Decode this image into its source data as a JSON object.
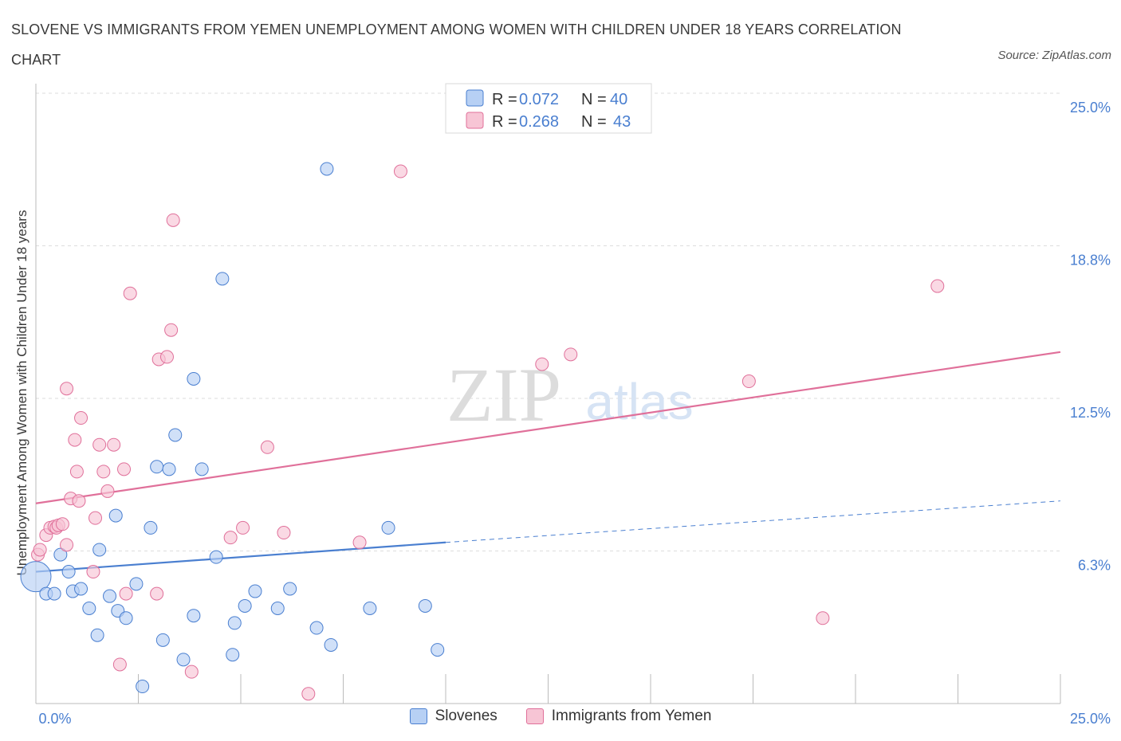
{
  "title": "SLOVENE VS IMMIGRANTS FROM YEMEN UNEMPLOYMENT AMONG WOMEN WITH CHILDREN UNDER 18 YEARS CORRELATION CHART",
  "source": "Source: ZipAtlas.com",
  "watermark": {
    "zip": "ZIP",
    "atlas": "atlas"
  },
  "chart_data": {
    "type": "scatter",
    "xlabel": "",
    "ylabel": "Unemployment Among Women with Children Under 18 years",
    "xlim": [
      0,
      25
    ],
    "ylim": [
      0,
      25
    ],
    "x_tick_labels": [
      "0.0%",
      "25.0%"
    ],
    "y_ticks": [
      25.0,
      18.75,
      12.5,
      6.25
    ],
    "y_tick_labels": [
      "25.0%",
      "18.8%",
      "12.5%",
      "6.3%"
    ],
    "legend": [
      {
        "r_label": "R =",
        "r_value": "0.072",
        "n_label": "N =",
        "n_value": "40"
      },
      {
        "r_label": "R =",
        "r_value": "0.268",
        "n_label": "N =",
        "n_value": "43"
      }
    ],
    "series": [
      {
        "name": "Slovenes",
        "color": "#4a7fd0",
        "fill": "#b7d0f4",
        "trend": {
          "x0": 0,
          "y0": 5.4,
          "x1": 10,
          "y1": 6.6,
          "dash_to_x": 25,
          "dash_to_y": 8.3
        },
        "points": [
          [
            0.0,
            5.2
          ],
          [
            0.25,
            4.5
          ],
          [
            0.45,
            4.5
          ],
          [
            0.6,
            6.1
          ],
          [
            0.8,
            5.4
          ],
          [
            0.9,
            4.6
          ],
          [
            1.1,
            4.7
          ],
          [
            1.3,
            3.9
          ],
          [
            1.5,
            2.8
          ],
          [
            1.55,
            6.3
          ],
          [
            1.8,
            4.4
          ],
          [
            1.95,
            7.7
          ],
          [
            2.0,
            3.8
          ],
          [
            2.2,
            3.5
          ],
          [
            2.45,
            4.9
          ],
          [
            2.6,
            0.7
          ],
          [
            2.8,
            7.2
          ],
          [
            2.95,
            9.7
          ],
          [
            3.1,
            2.6
          ],
          [
            3.25,
            9.6
          ],
          [
            3.4,
            11.0
          ],
          [
            3.6,
            1.8
          ],
          [
            3.85,
            13.3
          ],
          [
            3.85,
            3.6
          ],
          [
            4.05,
            9.6
          ],
          [
            4.4,
            6.0
          ],
          [
            4.55,
            17.4
          ],
          [
            4.8,
            2.0
          ],
          [
            4.85,
            3.3
          ],
          [
            5.1,
            4.0
          ],
          [
            5.35,
            4.6
          ],
          [
            5.9,
            3.9
          ],
          [
            6.2,
            4.7
          ],
          [
            6.85,
            3.1
          ],
          [
            7.1,
            21.9
          ],
          [
            7.2,
            2.4
          ],
          [
            8.15,
            3.9
          ],
          [
            8.6,
            7.2
          ],
          [
            9.5,
            4.0
          ],
          [
            9.8,
            2.2
          ]
        ]
      },
      {
        "name": "Immigrants from Yemen",
        "color": "#e0709a",
        "fill": "#f7c5d5",
        "trend": {
          "x0": 0,
          "y0": 8.2,
          "x1": 25,
          "y1": 14.4
        },
        "points": [
          [
            0.05,
            6.1
          ],
          [
            0.1,
            6.3
          ],
          [
            0.25,
            6.9
          ],
          [
            0.35,
            7.2
          ],
          [
            0.45,
            7.25
          ],
          [
            0.5,
            7.2
          ],
          [
            0.55,
            7.3
          ],
          [
            0.65,
            7.35
          ],
          [
            0.75,
            6.5
          ],
          [
            0.75,
            12.9
          ],
          [
            0.85,
            8.4
          ],
          [
            0.95,
            10.8
          ],
          [
            1.0,
            9.5
          ],
          [
            1.1,
            11.7
          ],
          [
            1.05,
            8.3
          ],
          [
            1.4,
            5.4
          ],
          [
            1.45,
            7.6
          ],
          [
            1.55,
            10.6
          ],
          [
            1.65,
            9.5
          ],
          [
            1.75,
            8.7
          ],
          [
            1.9,
            10.6
          ],
          [
            2.05,
            1.6
          ],
          [
            2.15,
            9.6
          ],
          [
            2.2,
            4.5
          ],
          [
            2.3,
            16.8
          ],
          [
            2.95,
            4.5
          ],
          [
            3.0,
            14.1
          ],
          [
            3.2,
            14.2
          ],
          [
            3.3,
            15.3
          ],
          [
            3.35,
            19.8
          ],
          [
            3.8,
            1.3
          ],
          [
            4.75,
            6.8
          ],
          [
            5.05,
            7.2
          ],
          [
            5.65,
            10.5
          ],
          [
            6.05,
            7.0
          ],
          [
            6.65,
            0.4
          ],
          [
            7.9,
            6.6
          ],
          [
            8.9,
            21.8
          ],
          [
            12.35,
            13.9
          ],
          [
            13.05,
            14.3
          ],
          [
            17.4,
            13.2
          ],
          [
            19.2,
            3.5
          ],
          [
            22.0,
            17.1
          ]
        ]
      }
    ]
  }
}
